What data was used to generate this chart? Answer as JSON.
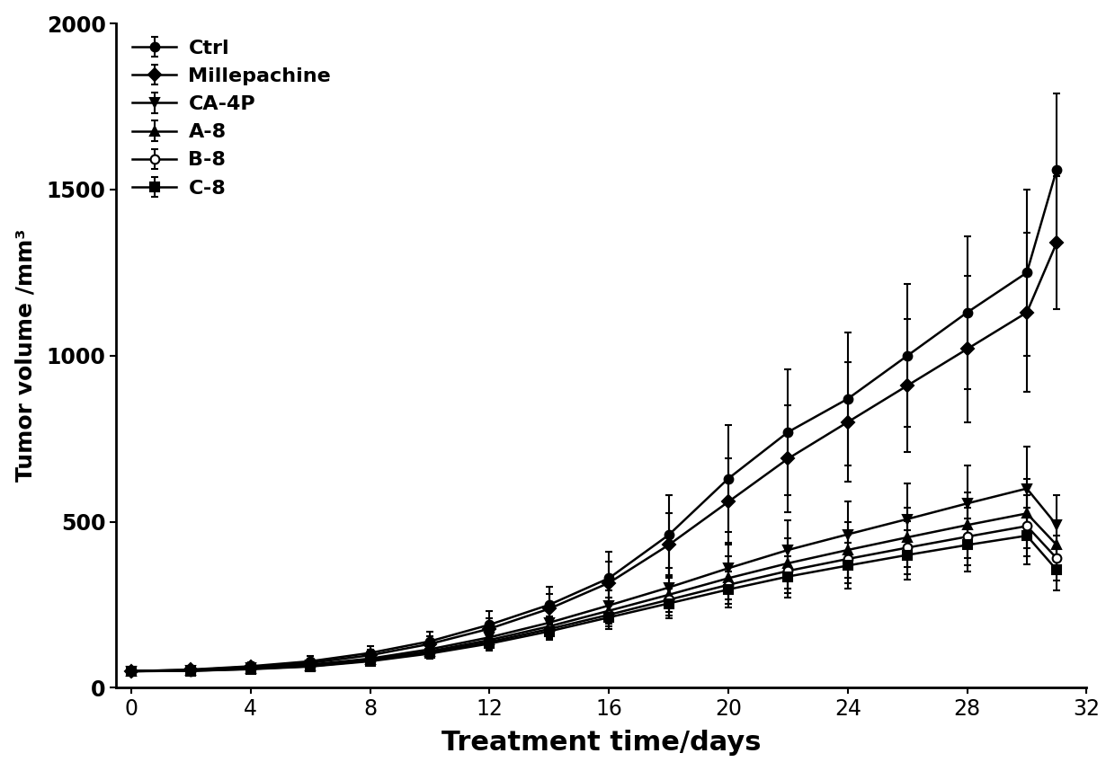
{
  "series": [
    {
      "label": "Ctrl",
      "marker": "o",
      "color": "#000000",
      "fillstyle": "full",
      "x": [
        0,
        2,
        4,
        6,
        8,
        10,
        12,
        14,
        16,
        18,
        20,
        22,
        24,
        26,
        28,
        30,
        31
      ],
      "y": [
        50,
        55,
        65,
        80,
        105,
        140,
        190,
        250,
        330,
        460,
        630,
        770,
        870,
        1000,
        1130,
        1250,
        1560
      ],
      "yerr": [
        8,
        10,
        12,
        15,
        20,
        28,
        40,
        55,
        80,
        120,
        160,
        190,
        200,
        215,
        230,
        250,
        230
      ]
    },
    {
      "label": "Millepachine",
      "marker": "D",
      "color": "#000000",
      "fillstyle": "full",
      "x": [
        0,
        2,
        4,
        6,
        8,
        10,
        12,
        14,
        16,
        18,
        20,
        22,
        24,
        26,
        28,
        30,
        31
      ],
      "y": [
        50,
        54,
        63,
        75,
        98,
        132,
        178,
        238,
        316,
        430,
        560,
        690,
        800,
        910,
        1020,
        1130,
        1340
      ],
      "yerr": [
        8,
        10,
        12,
        14,
        18,
        24,
        32,
        44,
        65,
        95,
        130,
        160,
        180,
        200,
        220,
        240,
        200
      ]
    },
    {
      "label": "CA-4P",
      "marker": "v",
      "color": "#000000",
      "fillstyle": "full",
      "x": [
        0,
        2,
        4,
        6,
        8,
        10,
        12,
        14,
        16,
        18,
        20,
        22,
        24,
        26,
        28,
        30,
        31
      ],
      "y": [
        50,
        52,
        60,
        70,
        88,
        116,
        152,
        196,
        248,
        302,
        360,
        415,
        462,
        508,
        555,
        600,
        490
      ],
      "yerr": [
        8,
        9,
        11,
        13,
        16,
        20,
        26,
        34,
        46,
        60,
        76,
        88,
        98,
        106,
        115,
        125,
        90
      ]
    },
    {
      "label": "A-8",
      "marker": "^",
      "color": "#000000",
      "fillstyle": "full",
      "x": [
        0,
        2,
        4,
        6,
        8,
        10,
        12,
        14,
        16,
        18,
        20,
        22,
        24,
        26,
        28,
        30,
        31
      ],
      "y": [
        50,
        52,
        58,
        67,
        84,
        110,
        144,
        185,
        232,
        280,
        330,
        375,
        415,
        453,
        490,
        525,
        430
      ],
      "yerr": [
        8,
        9,
        10,
        12,
        15,
        18,
        23,
        30,
        40,
        52,
        65,
        75,
        83,
        90,
        98,
        105,
        75
      ]
    },
    {
      "label": "B-8",
      "marker": "o",
      "color": "#000000",
      "fillstyle": "none",
      "x": [
        0,
        2,
        4,
        6,
        8,
        10,
        12,
        14,
        16,
        18,
        20,
        22,
        24,
        26,
        28,
        30,
        31
      ],
      "y": [
        50,
        51,
        57,
        65,
        82,
        106,
        138,
        177,
        220,
        265,
        310,
        352,
        388,
        422,
        455,
        487,
        390
      ],
      "yerr": [
        8,
        9,
        10,
        11,
        14,
        17,
        21,
        27,
        36,
        47,
        58,
        67,
        74,
        80,
        86,
        92,
        68
      ]
    },
    {
      "label": "C-8",
      "marker": "s",
      "color": "#000000",
      "fillstyle": "full",
      "x": [
        0,
        2,
        4,
        6,
        8,
        10,
        12,
        14,
        16,
        18,
        20,
        22,
        24,
        26,
        28,
        30,
        31
      ],
      "y": [
        50,
        51,
        56,
        64,
        80,
        103,
        133,
        170,
        212,
        254,
        296,
        335,
        368,
        400,
        430,
        458,
        355
      ],
      "yerr": [
        8,
        9,
        10,
        11,
        13,
        16,
        20,
        26,
        34,
        44,
        54,
        62,
        68,
        74,
        80,
        85,
        62
      ]
    }
  ],
  "xlabel": "Treatment time/days",
  "ylabel": "Tumor volume /mm³",
  "xlim": [
    -0.5,
    32
  ],
  "ylim": [
    0,
    2000
  ],
  "xticks": [
    0,
    4,
    8,
    12,
    16,
    20,
    24,
    28,
    32
  ],
  "yticks": [
    0,
    500,
    1000,
    1500,
    2000
  ],
  "background_color": "#ffffff",
  "line_width": 1.8,
  "marker_size": 7,
  "capsize": 3,
  "elinewidth": 1.5,
  "legend_fontsize": 16,
  "xlabel_fontsize": 22,
  "ylabel_fontsize": 18,
  "tick_fontsize": 17
}
